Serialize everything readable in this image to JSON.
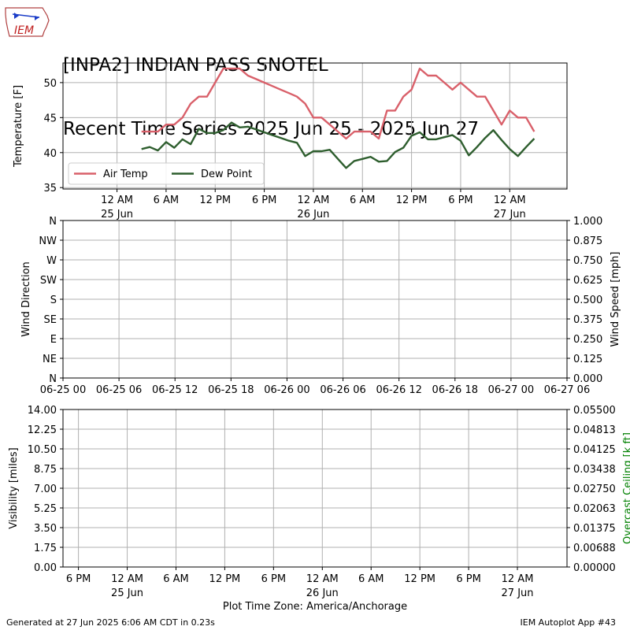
{
  "header": {
    "logo_text": "IEM",
    "title_line1": "[INPA2] INDIAN PASS SNOTEL",
    "title_line2": "Recent Time Series 2025 Jun 25 - 2025 Jun 27"
  },
  "footer": {
    "generated": "Generated at 27 Jun 2025 6:06 AM CDT in 0.23s",
    "app": "IEM Autoplot App #43",
    "timezone_label": "Plot Time Zone: America/Anchorage"
  },
  "colors": {
    "air_temp": "#d9606a",
    "dew_point": "#2e5e2e",
    "grid": "#b0b0b0",
    "ceiling_label": "#008000"
  },
  "chart_data": [
    {
      "type": "line",
      "panel": "temperature",
      "ylabel": "Temperature [F]",
      "ylim": [
        34.8,
        52.8
      ],
      "y_ticks": [
        35,
        40,
        45,
        50
      ],
      "xlim_hours": [
        -6.6,
        55
      ],
      "x_ticks": [
        {
          "h": 0,
          "line1": "12 AM",
          "line2": "25 Jun"
        },
        {
          "h": 6,
          "line1": "6 AM",
          "line2": ""
        },
        {
          "h": 12,
          "line1": "12 PM",
          "line2": ""
        },
        {
          "h": 18,
          "line1": "6 PM",
          "line2": ""
        },
        {
          "h": 24,
          "line1": "12 AM",
          "line2": "26 Jun"
        },
        {
          "h": 30,
          "line1": "6 AM",
          "line2": ""
        },
        {
          "h": 36,
          "line1": "12 PM",
          "line2": ""
        },
        {
          "h": 42,
          "line1": "6 PM",
          "line2": ""
        },
        {
          "h": 48,
          "line1": "12 AM",
          "line2": "27 Jun"
        }
      ],
      "grid": true,
      "legend_position": "bottom-left",
      "series": [
        {
          "name": "Air Temp",
          "color": "#d9606a",
          "points": [
            [
              3,
              43
            ],
            [
              4,
              43
            ],
            [
              5,
              43
            ],
            [
              6,
              44
            ],
            [
              7,
              44
            ],
            [
              8,
              45
            ],
            [
              9,
              47
            ],
            [
              10,
              48
            ],
            [
              11,
              48
            ],
            [
              12,
              50
            ],
            [
              13,
              52
            ],
            [
              14,
              52
            ],
            [
              15,
              52
            ],
            [
              16,
              51
            ],
            [
              17,
              50.5
            ],
            [
              18,
              50
            ],
            [
              19,
              49.5
            ],
            [
              20,
              49
            ],
            [
              21,
              48.5
            ],
            [
              22,
              48
            ],
            [
              23,
              47
            ],
            [
              24,
              45
            ],
            [
              25,
              45
            ],
            [
              26,
              44
            ],
            [
              27,
              43
            ],
            [
              28,
              42
            ],
            [
              29,
              43
            ],
            [
              30,
              43
            ],
            [
              31,
              43
            ],
            [
              32,
              42
            ],
            [
              33,
              46
            ],
            [
              34,
              46
            ],
            [
              35,
              48
            ],
            [
              36,
              49
            ],
            [
              37,
              52
            ],
            [
              38,
              51
            ],
            [
              39,
              51
            ],
            [
              40,
              50
            ],
            [
              41,
              49
            ],
            [
              42,
              50
            ],
            [
              43,
              49
            ],
            [
              44,
              48
            ],
            [
              45,
              48
            ],
            [
              46,
              46
            ],
            [
              47,
              44
            ],
            [
              48,
              46
            ],
            [
              49,
              45
            ],
            [
              50,
              45
            ],
            [
              51,
              43
            ]
          ]
        },
        {
          "name": "Dew Point",
          "color": "#2e5e2e",
          "points": [
            [
              3,
              40.5
            ],
            [
              4,
              40.8
            ],
            [
              5,
              40.3
            ],
            [
              6,
              41.5
            ],
            [
              7,
              40.7
            ],
            [
              8,
              41.9
            ],
            [
              9,
              41.2
            ],
            [
              10,
              43.4
            ],
            [
              11,
              42.8
            ],
            [
              12,
              42.8
            ],
            [
              13,
              43.2
            ],
            [
              14,
              44.3
            ],
            [
              15,
              43.6
            ],
            [
              16,
              43.7
            ],
            [
              17,
              43.3
            ],
            [
              18,
              42.9
            ],
            [
              19,
              42.5
            ],
            [
              20,
              42.1
            ],
            [
              21,
              41.7
            ],
            [
              22,
              41.4
            ],
            [
              23,
              39.5
            ],
            [
              24,
              40.2
            ],
            [
              25,
              40.2
            ],
            [
              26,
              40.4
            ],
            [
              27,
              39.1
            ],
            [
              28,
              37.8
            ],
            [
              29,
              38.8
            ],
            [
              30,
              39.1
            ],
            [
              31,
              39.4
            ],
            [
              32,
              38.7
            ],
            [
              33,
              38.8
            ],
            [
              34,
              40.1
            ],
            [
              35,
              40.7
            ],
            [
              36,
              42.4
            ],
            [
              37,
              42.9
            ],
            [
              38,
              41.9
            ],
            [
              39,
              41.9
            ],
            [
              40,
              42.2
            ],
            [
              41,
              42.5
            ],
            [
              42,
              41.7
            ],
            [
              43,
              39.6
            ],
            [
              44,
              40.8
            ],
            [
              45,
              42.1
            ],
            [
              46,
              43.2
            ],
            [
              47,
              41.8
            ],
            [
              48,
              40.5
            ],
            [
              49,
              39.5
            ],
            [
              50,
              40.8
            ],
            [
              51,
              42
            ]
          ]
        }
      ]
    },
    {
      "type": "line",
      "panel": "wind",
      "ylabel": "Wind Direction",
      "y2label": "Wind Speed [mph]",
      "y_ticks_left": [
        "N",
        "NE",
        "E",
        "SE",
        "S",
        "SW",
        "W",
        "NW",
        "N"
      ],
      "y_ticks_right": [
        "0.000",
        "0.125",
        "0.250",
        "0.375",
        "0.500",
        "0.625",
        "0.750",
        "0.875",
        "1.000"
      ],
      "xlim_hours": [
        0,
        54
      ],
      "x_ticks": [
        {
          "h": 0,
          "label": "06-25 00"
        },
        {
          "h": 6,
          "label": "06-25 06"
        },
        {
          "h": 12,
          "label": "06-25 12"
        },
        {
          "h": 18,
          "label": "06-25 18"
        },
        {
          "h": 24,
          "label": "06-26 00"
        },
        {
          "h": 30,
          "label": "06-26 06"
        },
        {
          "h": 36,
          "label": "06-26 12"
        },
        {
          "h": 42,
          "label": "06-26 18"
        },
        {
          "h": 48,
          "label": "06-27 00"
        },
        {
          "h": 54,
          "label": "06-27 06"
        }
      ],
      "grid": true,
      "series": []
    },
    {
      "type": "line",
      "panel": "visibility",
      "ylabel": "Visibility [miles]",
      "y2label": "Overcast Ceiling [k ft]",
      "y_ticks_left": [
        "0.00",
        "1.75",
        "3.50",
        "5.25",
        "7.00",
        "8.75",
        "10.50",
        "12.25",
        "14.00"
      ],
      "y_ticks_right": [
        "0.00000",
        "0.00688",
        "0.01375",
        "0.02063",
        "0.02750",
        "0.03438",
        "0.04125",
        "0.04813",
        "0.05500"
      ],
      "xlim_hours": [
        -7.9,
        54.1
      ],
      "x_ticks": [
        {
          "h": -6,
          "line1": "6 PM",
          "line2": ""
        },
        {
          "h": 0,
          "line1": "12 AM",
          "line2": "25 Jun"
        },
        {
          "h": 6,
          "line1": "6 AM",
          "line2": ""
        },
        {
          "h": 12,
          "line1": "12 PM",
          "line2": ""
        },
        {
          "h": 18,
          "line1": "6 PM",
          "line2": ""
        },
        {
          "h": 24,
          "line1": "12 AM",
          "line2": "26 Jun"
        },
        {
          "h": 30,
          "line1": "6 AM",
          "line2": ""
        },
        {
          "h": 36,
          "line1": "12 PM",
          "line2": ""
        },
        {
          "h": 42,
          "line1": "6 PM",
          "line2": ""
        },
        {
          "h": 48,
          "line1": "12 AM",
          "line2": "27 Jun"
        }
      ],
      "grid": true,
      "series": []
    }
  ]
}
